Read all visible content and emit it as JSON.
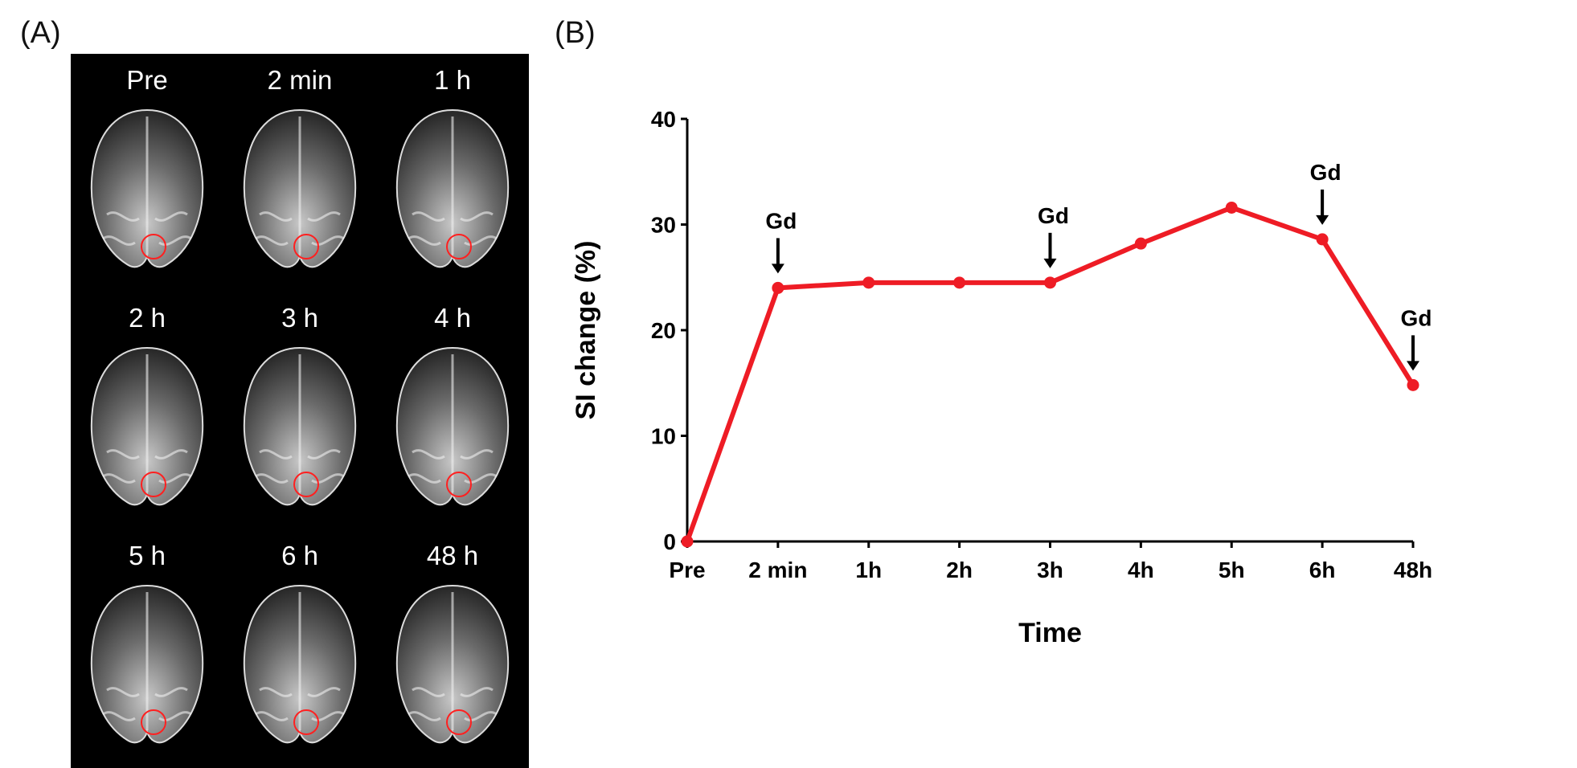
{
  "panels": {
    "a_label": "(A)",
    "b_label": "(B)"
  },
  "mri_images": [
    {
      "time": "Pre"
    },
    {
      "time": "2 min"
    },
    {
      "time": "1 h"
    },
    {
      "time": "2 h"
    },
    {
      "time": "3 h"
    },
    {
      "time": "4 h"
    },
    {
      "time": "5 h"
    },
    {
      "time": "6 h"
    },
    {
      "time": "48 h"
    }
  ],
  "chart_data": {
    "type": "line",
    "categories": [
      "Pre",
      "2 min",
      "1h",
      "2h",
      "3h",
      "4h",
      "5h",
      "6h",
      "48h"
    ],
    "series": [
      {
        "name": "SI change",
        "color": "#ee1c25",
        "values": [
          0,
          24.0,
          24.5,
          24.5,
          24.5,
          28.2,
          31.6,
          28.6,
          14.8
        ]
      }
    ],
    "xlabel": "Time",
    "ylabel": "SI change (%)",
    "ylim": [
      0,
      40
    ],
    "yticks": [
      0,
      10,
      20,
      30,
      40
    ],
    "annotations": [
      {
        "text": "Gd",
        "category": "2 min",
        "value": 24.0
      },
      {
        "text": "Gd",
        "category": "3h",
        "value": 24.5
      },
      {
        "text": "Gd",
        "category": "6h",
        "value": 28.6
      },
      {
        "text": "Gd",
        "category": "48h",
        "value": 14.8
      }
    ],
    "grid": false
  }
}
